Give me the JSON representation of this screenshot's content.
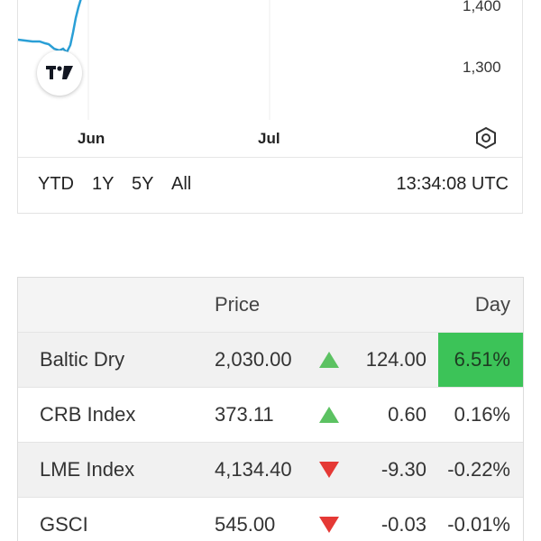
{
  "chart": {
    "y_ticks": [
      {
        "label": "1,400",
        "value": 1400
      },
      {
        "label": "1,300",
        "value": 1300
      }
    ],
    "x_ticks": [
      "Jun",
      "Jul"
    ],
    "line_color": "#2a9fd6",
    "logo_icon": "tradingview-logo-icon",
    "settings_icon": "hexagon-gear-icon"
  },
  "range_bar": {
    "buttons": [
      "YTD",
      "1Y",
      "5Y",
      "All"
    ],
    "timestamp": "13:34:08 UTC"
  },
  "table": {
    "headers": {
      "name": "",
      "price": "Price",
      "change": "",
      "day": "Day"
    },
    "rows": [
      {
        "name": "Baltic Dry",
        "price": "2,030.00",
        "direction": "up",
        "change": "124.00",
        "pct": "6.51%",
        "highlight": true
      },
      {
        "name": "CRB Index",
        "price": "373.11",
        "direction": "up",
        "change": "0.60",
        "pct": "0.16%",
        "highlight": false
      },
      {
        "name": "LME Index",
        "price": "4,134.40",
        "direction": "down",
        "change": "-9.30",
        "pct": "-0.22%",
        "highlight": false
      },
      {
        "name": "GSCI",
        "price": "545.00",
        "direction": "down",
        "change": "-0.03",
        "pct": "-0.01%",
        "highlight": false
      }
    ],
    "colors": {
      "up": "#5cc262",
      "down": "#e53935",
      "highlight": "#3cc358"
    }
  }
}
